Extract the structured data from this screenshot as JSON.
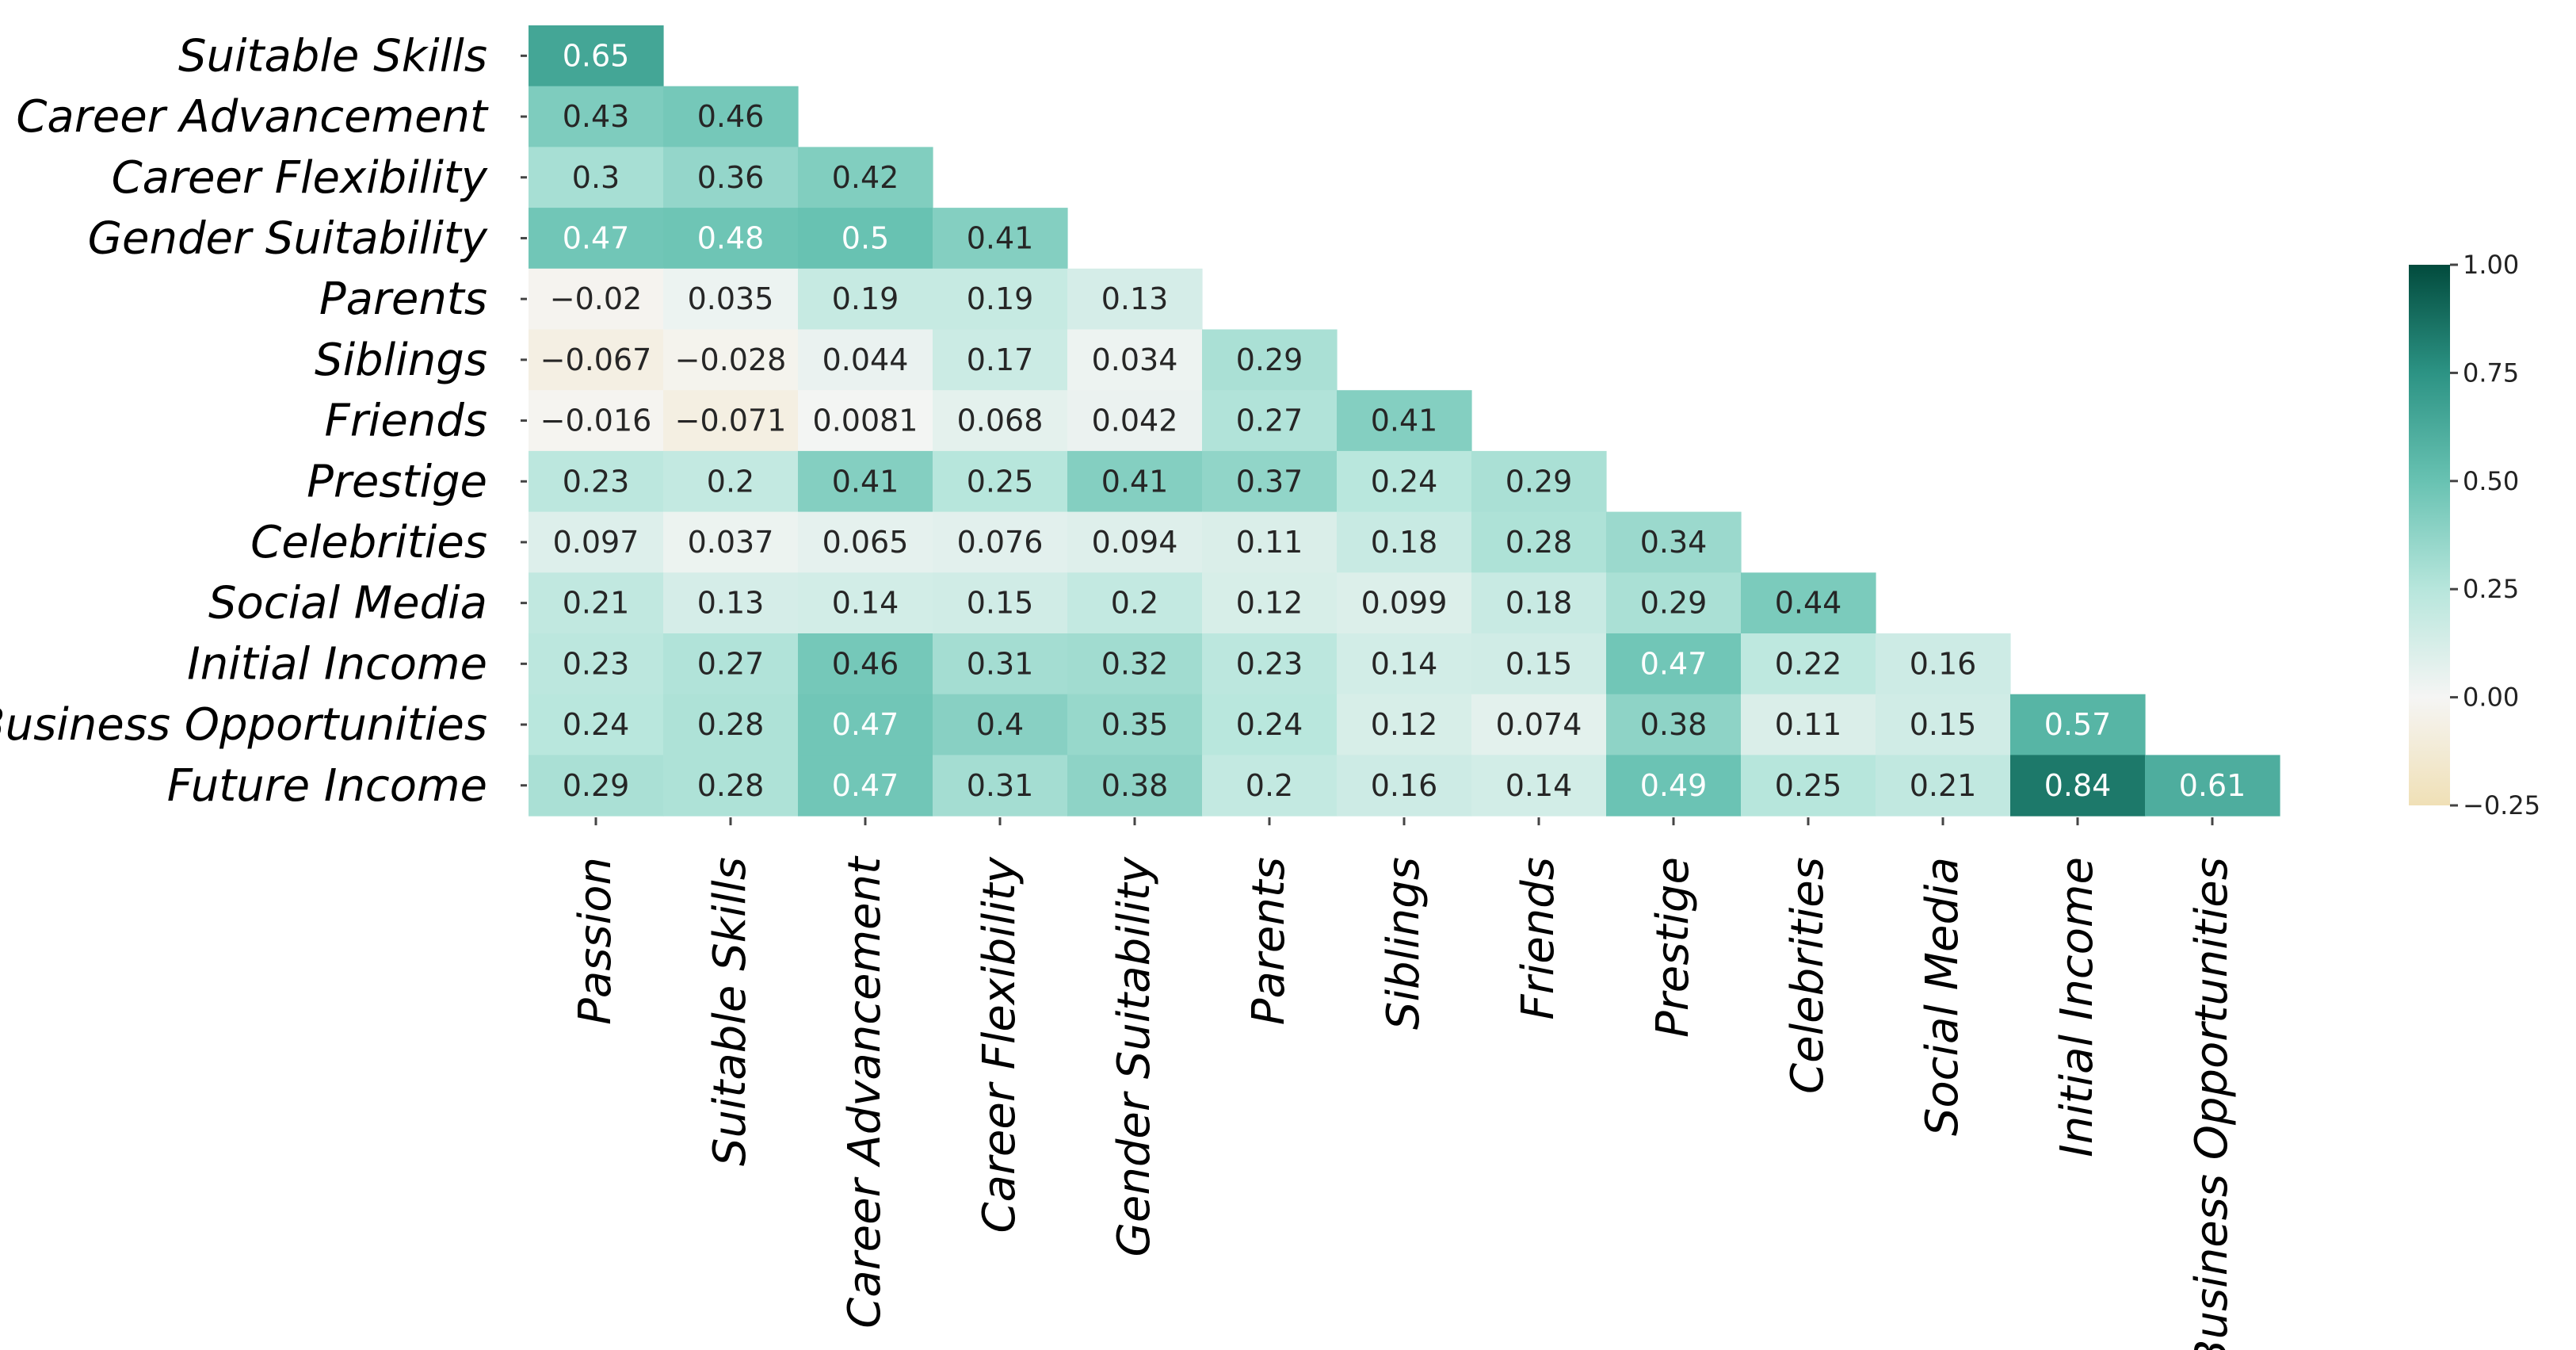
{
  "chart_data": {
    "type": "heatmap",
    "title": "",
    "xlabel": "",
    "ylabel": "",
    "row_labels": [
      "Suitable Skills",
      "Career Advancement",
      "Career Flexibility",
      "Gender Suitability",
      "Parents",
      "Siblings",
      "Friends",
      "Prestige",
      "Celebrities",
      "Social Media",
      "Initial Income",
      "Business Opportunities",
      "Future Income"
    ],
    "col_labels": [
      "Passion",
      "Suitable Skills",
      "Career Advancement",
      "Career Flexibility",
      "Gender Suitability",
      "Parents",
      "Siblings",
      "Friends",
      "Prestige",
      "Celebrities",
      "Social Media",
      "Initial Income",
      "Business Opportunities"
    ],
    "values": [
      [
        0.65
      ],
      [
        0.43,
        0.46
      ],
      [
        0.3,
        0.36,
        0.42
      ],
      [
        0.47,
        0.48,
        0.5,
        0.41
      ],
      [
        -0.02,
        0.035,
        0.19,
        0.19,
        0.13
      ],
      [
        -0.067,
        -0.028,
        0.044,
        0.17,
        0.034,
        0.29
      ],
      [
        -0.016,
        -0.071,
        0.0081,
        0.068,
        0.042,
        0.27,
        0.41
      ],
      [
        0.23,
        0.2,
        0.41,
        0.25,
        0.41,
        0.37,
        0.24,
        0.29
      ],
      [
        0.097,
        0.037,
        0.065,
        0.076,
        0.094,
        0.11,
        0.18,
        0.28,
        0.34
      ],
      [
        0.21,
        0.13,
        0.14,
        0.15,
        0.2,
        0.12,
        0.099,
        0.18,
        0.29,
        0.44
      ],
      [
        0.23,
        0.27,
        0.46,
        0.31,
        0.32,
        0.23,
        0.14,
        0.15,
        0.47,
        0.22,
        0.16
      ],
      [
        0.24,
        0.28,
        0.47,
        0.4,
        0.35,
        0.24,
        0.12,
        0.074,
        0.38,
        0.11,
        0.15,
        0.57
      ],
      [
        0.29,
        0.28,
        0.47,
        0.31,
        0.38,
        0.2,
        0.16,
        0.14,
        0.49,
        0.25,
        0.21,
        0.84,
        0.61
      ]
    ],
    "value_labels": [
      [
        "0.65"
      ],
      [
        "0.43",
        "0.46"
      ],
      [
        "0.3",
        "0.36",
        "0.42"
      ],
      [
        "0.47",
        "0.48",
        "0.5",
        "0.41"
      ],
      [
        "−0.02",
        "0.035",
        "0.19",
        "0.19",
        "0.13"
      ],
      [
        "−0.067",
        "−0.028",
        "0.044",
        "0.17",
        "0.034",
        "0.29"
      ],
      [
        "−0.016",
        "−0.071",
        "0.0081",
        "0.068",
        "0.042",
        "0.27",
        "0.41"
      ],
      [
        "0.23",
        "0.2",
        "0.41",
        "0.25",
        "0.41",
        "0.37",
        "0.24",
        "0.29"
      ],
      [
        "0.097",
        "0.037",
        "0.065",
        "0.076",
        "0.094",
        "0.11",
        "0.18",
        "0.28",
        "0.34"
      ],
      [
        "0.21",
        "0.13",
        "0.14",
        "0.15",
        "0.2",
        "0.12",
        "0.099",
        "0.18",
        "0.29",
        "0.44"
      ],
      [
        "0.23",
        "0.27",
        "0.46",
        "0.31",
        "0.32",
        "0.23",
        "0.14",
        "0.15",
        "0.47",
        "0.22",
        "0.16"
      ],
      [
        "0.24",
        "0.28",
        "0.47",
        "0.4",
        "0.35",
        "0.24",
        "0.12",
        "0.074",
        "0.38",
        "0.11",
        "0.15",
        "0.57"
      ],
      [
        "0.29",
        "0.28",
        "0.47",
        "0.31",
        "0.38",
        "0.2",
        "0.16",
        "0.14",
        "0.49",
        "0.25",
        "0.21",
        "0.84",
        "0.61"
      ]
    ],
    "colorbar": {
      "range": [
        -0.25,
        1.0
      ],
      "ticks": [
        1.0,
        0.75,
        0.5,
        0.25,
        0.0,
        -0.25
      ],
      "tick_labels": [
        "1.00",
        "0.75",
        "0.50",
        "0.25",
        "0.00",
        "−0.25"
      ],
      "placement": "right"
    },
    "colormap": {
      "name": "BrBG",
      "stops": [
        [
          -0.25,
          "#f0e0b6"
        ],
        [
          0.0,
          "#f5f5f4"
        ],
        [
          0.25,
          "#b7e6dc"
        ],
        [
          0.5,
          "#68c2b2"
        ],
        [
          0.75,
          "#2c9384"
        ],
        [
          1.0,
          "#024b3d"
        ]
      ]
    }
  }
}
